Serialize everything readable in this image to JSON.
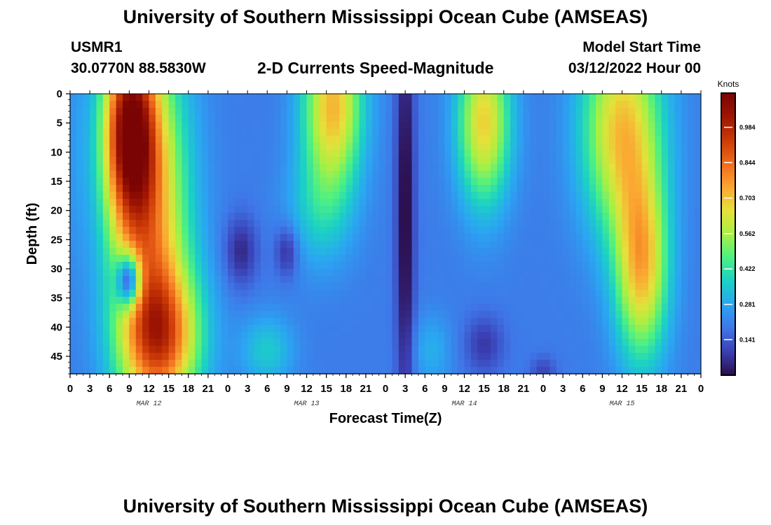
{
  "header": {
    "title": "University of Southern Mississippi Ocean Cube (AMSEAS)",
    "station": "USMR1",
    "coords": "30.0770N  88.5830W",
    "plot_title": "2-D Currents Speed-Magnitude",
    "model_label": "Model Start Time",
    "model_date": "03/12/2022 Hour 00"
  },
  "footer": {
    "title": "University of Southern Mississippi Ocean Cube (AMSEAS)"
  },
  "colormap": [
    "#2a0d4a",
    "#3b3fb4",
    "#3f76e8",
    "#2aa6f2",
    "#1bd0c6",
    "#4cf083",
    "#a8f043",
    "#e6e03a",
    "#fba731",
    "#ef6a1c",
    "#cc3a06",
    "#9e1503",
    "#7a0403"
  ],
  "chart_data": {
    "type": "heatmap",
    "title": "2-D Currents Speed-Magnitude",
    "xlabel": "Forecast Time(Z)",
    "ylabel": "Depth (ft)",
    "x_ticks": [
      "0",
      "3",
      "6",
      "9",
      "12",
      "15",
      "18",
      "21",
      "0",
      "3",
      "6",
      "9",
      "12",
      "15",
      "18",
      "21",
      "0",
      "3",
      "6",
      "9",
      "12",
      "15",
      "18",
      "21",
      "0",
      "3",
      "6",
      "9",
      "12",
      "15",
      "18",
      "21",
      "0"
    ],
    "x_dates": [
      "MAR 12",
      "MAR 13",
      "MAR 14",
      "MAR 15"
    ],
    "x_range_hours": [
      0,
      96
    ],
    "y_ticks": [
      "0",
      "5",
      "10",
      "15",
      "20",
      "25",
      "30",
      "35",
      "40",
      "45"
    ],
    "y_range_ft": [
      0,
      48
    ],
    "colorbar": {
      "unit": "Knots",
      "range": [
        0,
        1.12
      ],
      "ticks": [
        "0.141",
        "0.281",
        "0.422",
        "0.562",
        "0.703",
        "0.844",
        "0.984"
      ],
      "tick_values": [
        0.141,
        0.281,
        0.422,
        0.562,
        0.703,
        0.844,
        0.984
      ]
    },
    "base_speed": 0.2,
    "features": [
      {
        "hour": 1,
        "depth": 10,
        "speed_delta": 0.04,
        "hour_radius": 2,
        "depth_radius": 22
      },
      {
        "hour": 9,
        "depth": 6,
        "speed_delta": 0.72,
        "hour_radius": 4,
        "depth_radius": 16
      },
      {
        "hour": 12,
        "depth": 22,
        "speed_delta": 0.54,
        "hour_radius": 6,
        "depth_radius": 30
      },
      {
        "hour": 14,
        "depth": 42,
        "speed_delta": 0.5,
        "hour_radius": 6,
        "depth_radius": 12
      },
      {
        "hour": 9,
        "depth": 32,
        "speed_delta": -0.55,
        "hour_radius": 1.8,
        "depth_radius": 4.5
      },
      {
        "hour": 26,
        "depth": 27,
        "speed_delta": -0.15,
        "hour_radius": 2.5,
        "depth_radius": 6
      },
      {
        "hour": 33,
        "depth": 27,
        "speed_delta": -0.15,
        "hour_radius": 1.8,
        "depth_radius": 4.5
      },
      {
        "hour": 30,
        "depth": 44,
        "speed_delta": 0.16,
        "hour_radius": 4,
        "depth_radius": 6
      },
      {
        "hour": 40,
        "depth": 2,
        "speed_delta": 0.52,
        "hour_radius": 4.5,
        "depth_radius": 14
      },
      {
        "hour": 38,
        "depth": 20,
        "speed_delta": 0.15,
        "hour_radius": 5,
        "depth_radius": 10
      },
      {
        "hour": 51,
        "depth": 20,
        "speed_delta": -0.22,
        "hour_radius": 1.4,
        "depth_radius": 40
      },
      {
        "hour": 55,
        "depth": 44,
        "speed_delta": 0.1,
        "hour_radius": 3,
        "depth_radius": 6
      },
      {
        "hour": 63,
        "depth": 5,
        "speed_delta": 0.48,
        "hour_radius": 4,
        "depth_radius": 14
      },
      {
        "hour": 63,
        "depth": 43,
        "speed_delta": -0.12,
        "hour_radius": 3,
        "depth_radius": 5
      },
      {
        "hour": 72,
        "depth": 48,
        "speed_delta": -0.1,
        "hour_radius": 2,
        "depth_radius": 3
      },
      {
        "hour": 84,
        "depth": 6,
        "speed_delta": 0.5,
        "hour_radius": 6,
        "depth_radius": 18
      },
      {
        "hour": 87,
        "depth": 30,
        "speed_delta": 0.5,
        "hour_radius": 4,
        "depth_radius": 16
      }
    ]
  }
}
